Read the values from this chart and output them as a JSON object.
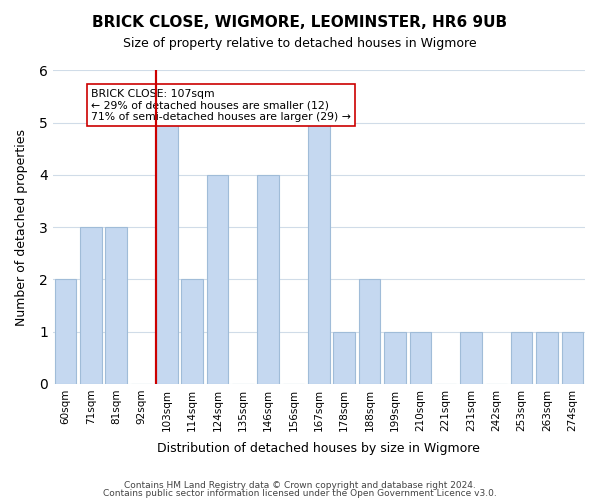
{
  "title": "BRICK CLOSE, WIGMORE, LEOMINSTER, HR6 9UB",
  "subtitle": "Size of property relative to detached houses in Wigmore",
  "xlabel": "Distribution of detached houses by size in Wigmore",
  "ylabel": "Number of detached properties",
  "bar_labels": [
    "60sqm",
    "71sqm",
    "81sqm",
    "92sqm",
    "103sqm",
    "114sqm",
    "124sqm",
    "135sqm",
    "146sqm",
    "156sqm",
    "167sqm",
    "178sqm",
    "188sqm",
    "199sqm",
    "210sqm",
    "221sqm",
    "231sqm",
    "242sqm",
    "253sqm",
    "263sqm",
    "274sqm"
  ],
  "bar_values": [
    2,
    3,
    3,
    0,
    5,
    2,
    4,
    0,
    4,
    0,
    5,
    1,
    2,
    1,
    1,
    0,
    1,
    0,
    1,
    1,
    1
  ],
  "bar_color": "#c5d8f0",
  "bar_edge_color": "#a0bcd8",
  "highlight_bar_index": 4,
  "highlight_line_color": "#cc0000",
  "annotation_box_edge_color": "#cc0000",
  "annotation_lines": [
    "BRICK CLOSE: 107sqm",
    "← 29% of detached houses are smaller (12)",
    "71% of semi-detached houses are larger (29) →"
  ],
  "ylim": [
    0,
    6
  ],
  "yticks": [
    0,
    1,
    2,
    3,
    4,
    5,
    6
  ],
  "footer_lines": [
    "Contains HM Land Registry data © Crown copyright and database right 2024.",
    "Contains public sector information licensed under the Open Government Licence v3.0."
  ],
  "background_color": "#ffffff",
  "grid_color": "#d0dce8"
}
